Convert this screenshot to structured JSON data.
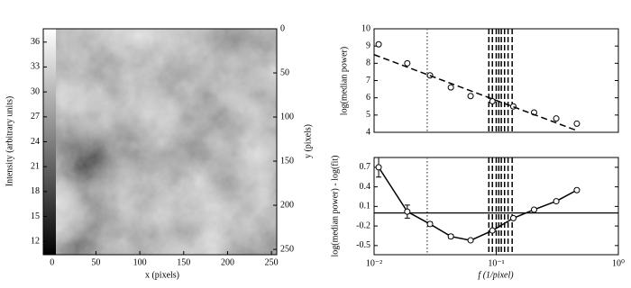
{
  "chart_data": [
    {
      "type": "image",
      "xlabel": "x (pixels)",
      "ylabel": "y (pixels)",
      "xlim": [
        -10,
        256
      ],
      "xticks": [
        0,
        50,
        100,
        150,
        200,
        250
      ],
      "ylim": [
        0,
        256
      ],
      "yticks": [
        0,
        50,
        100,
        150,
        200,
        250
      ],
      "colorbar": {
        "label": "Intensity (arbitrary units)",
        "lim": [
          10.4,
          37.6
        ],
        "ticks": [
          12,
          15,
          18,
          21,
          24,
          27,
          30,
          33,
          36
        ]
      }
    },
    {
      "type": "line",
      "ylabel": "log(median power)",
      "xscale": "log",
      "xlim": [
        0.01,
        1
      ],
      "ylim": [
        4,
        10
      ],
      "yticks": [
        4,
        5,
        6,
        7,
        8,
        9,
        10
      ],
      "vlines_dotted": [
        0.0272
      ],
      "vlines_dashed": [
        0.087,
        0.093,
        0.1,
        0.105,
        0.11,
        0.117,
        0.125,
        0.135
      ],
      "series": [
        {
          "color": "#000000",
          "marker": "o",
          "linestyle": "none",
          "x": [
            0.0109,
            0.0187,
            0.0287,
            0.0425,
            0.0617,
            0.093,
            0.138,
            0.204,
            0.31,
            0.457
          ],
          "values": [
            9.1,
            8.0,
            7.3,
            6.6,
            6.1,
            5.8,
            5.5,
            5.15,
            4.8,
            4.5
          ]
        },
        {
          "color": "#000000",
          "marker": "none",
          "linestyle": "dashed",
          "x": [
            0.01,
            0.457
          ],
          "values": [
            8.5,
            4.1
          ]
        }
      ]
    },
    {
      "type": "line",
      "ylabel": "log(median power) - log(fit)",
      "xlabel": "f (1/pixel)",
      "xscale": "log",
      "xlim": [
        0.01,
        1
      ],
      "xticks": [
        {
          "value": 0.01,
          "label": "10⁻²"
        },
        {
          "value": 0.1,
          "label": "10⁻¹"
        },
        {
          "value": 1,
          "label": "10⁰"
        }
      ],
      "ylim": [
        -0.64,
        0.85
      ],
      "yticks": [
        -0.5,
        -0.2,
        0.1,
        0.4,
        0.7
      ],
      "hline": 0,
      "vlines_dotted": [
        0.0272
      ],
      "vlines_dashed": [
        0.087,
        0.093,
        0.1,
        0.105,
        0.11,
        0.117,
        0.125,
        0.135
      ],
      "series": [
        {
          "color": "#000000",
          "marker": "o",
          "linestyle": "solid",
          "x": [
            0.0109,
            0.0187,
            0.0287,
            0.0425,
            0.0617,
            0.093,
            0.138,
            0.204,
            0.31,
            0.457
          ],
          "values": [
            0.7,
            0.02,
            -0.17,
            -0.36,
            -0.42,
            -0.27,
            -0.08,
            0.05,
            0.18,
            0.35
          ],
          "errors": [
            0.15,
            0.1,
            0.03,
            0.03,
            0.02,
            0.02,
            0.02,
            0.02,
            0.02,
            0.02
          ]
        }
      ]
    }
  ]
}
